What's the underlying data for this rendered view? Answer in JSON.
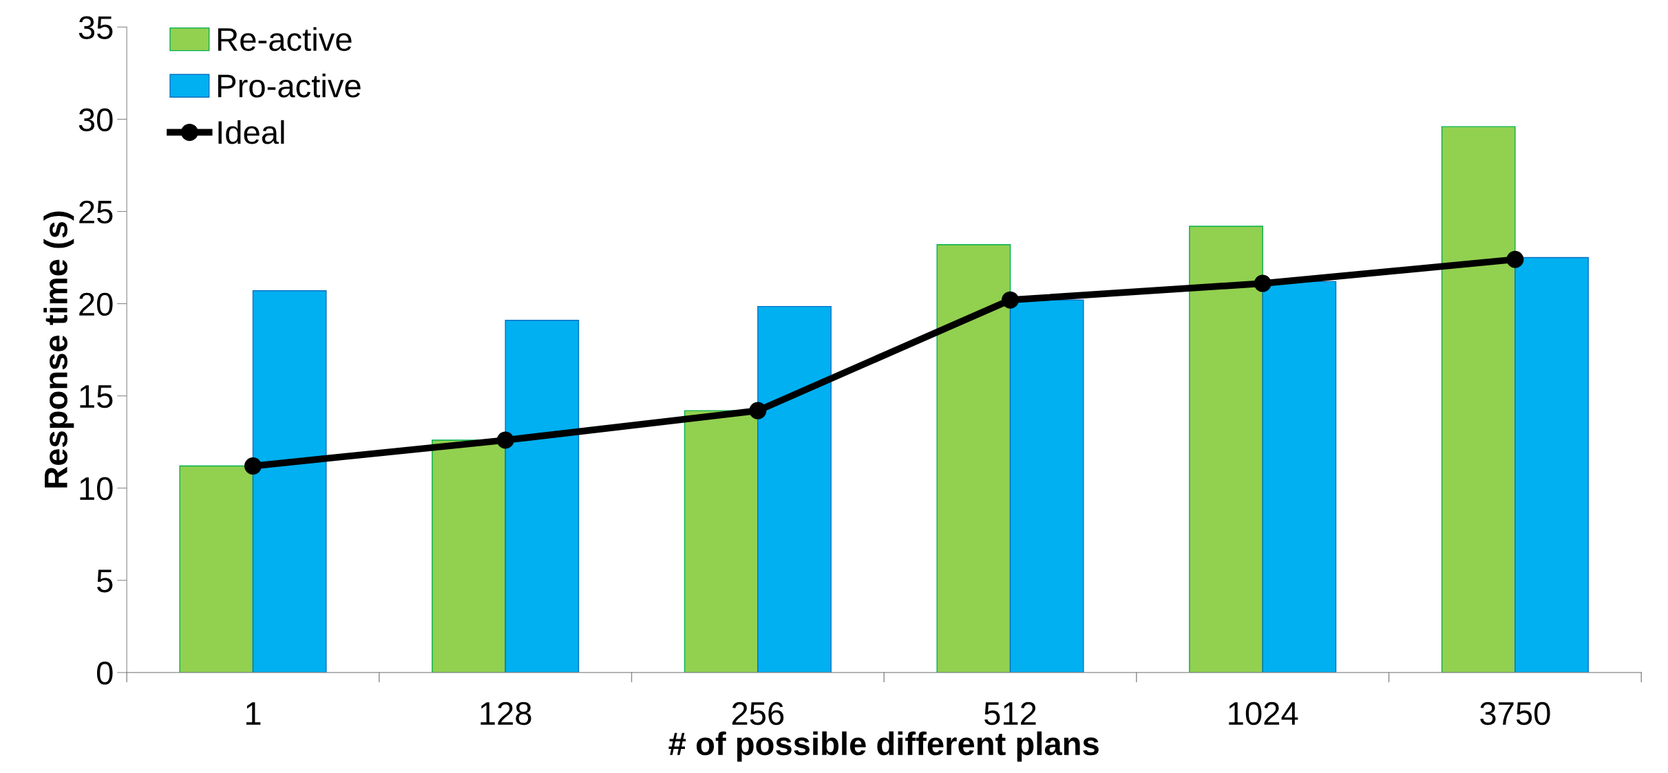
{
  "chart_data": {
    "type": "bar",
    "xlabel": "# of possible different plans",
    "ylabel": "Response time (s)",
    "categories": [
      "1",
      "128",
      "256",
      "512",
      "1024",
      "3750"
    ],
    "series": [
      {
        "name": "Re-active",
        "color": "#92d050",
        "values": [
          11.2,
          12.6,
          14.2,
          23.2,
          24.2,
          29.6
        ]
      },
      {
        "name": "Pro-active",
        "color": "#00b0f0",
        "values": [
          20.7,
          19.1,
          19.85,
          20.2,
          21.2,
          22.5
        ]
      },
      {
        "name": "Ideal",
        "type": "line",
        "color": "#000000",
        "marker": "circle",
        "values": [
          11.2,
          12.6,
          14.2,
          20.2,
          21.1,
          22.4
        ]
      }
    ],
    "ylim": [
      0,
      35
    ],
    "yticks": [
      0,
      5,
      10,
      15,
      20,
      25,
      30,
      35
    ],
    "grid": false,
    "legend": "top left"
  }
}
